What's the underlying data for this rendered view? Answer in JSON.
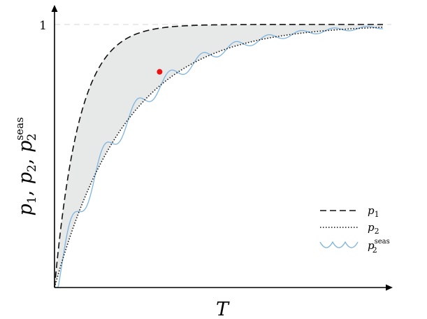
{
  "chart_data": {
    "type": "line",
    "xlabel": "T",
    "ylabel": "p1, p2, p2seas",
    "ylabel_parts": {
      "p1_base": "p",
      "p1_sub": "1",
      "sep1": ", ",
      "p2_base": "p",
      "p2_sub": "2",
      "sep2": ", ",
      "p2s_base": "p",
      "p2s_sub": "2",
      "p2s_sup": "seas"
    },
    "ytick_label": "1",
    "xlim": [
      0,
      10
    ],
    "ylim": [
      0,
      1.0
    ],
    "grid": false,
    "reference_line": {
      "y": 1,
      "style": "dashed",
      "color": "#dddddd"
    },
    "shaded_region": {
      "between": [
        "p1",
        "p2"
      ],
      "color": "#e6e9e8"
    },
    "highlight_point": {
      "x": 3.2,
      "y": 0.82,
      "color": "#ee1111"
    },
    "series": [
      {
        "key": "p1",
        "legend_base": "p",
        "legend_sub": "1",
        "style": "dashed",
        "color": "#111111",
        "formula": "1 - exp(-x/0.75)"
      },
      {
        "key": "p2",
        "legend_base": "p",
        "legend_sub": "2",
        "style": "dotted",
        "color": "#111111",
        "formula": "1 - exp(-x/2.2)"
      },
      {
        "key": "p2_seas",
        "legend_base": "p",
        "legend_sub": "2",
        "legend_sup": "seas",
        "style": "solid",
        "color": "#7fb4e0",
        "formula": "p2 + 0.065*exp(-x/4)*sin(2*pi*x/1.1 - pi/2) + seasonal ripple"
      }
    ],
    "legend_position": "bottom-right"
  }
}
